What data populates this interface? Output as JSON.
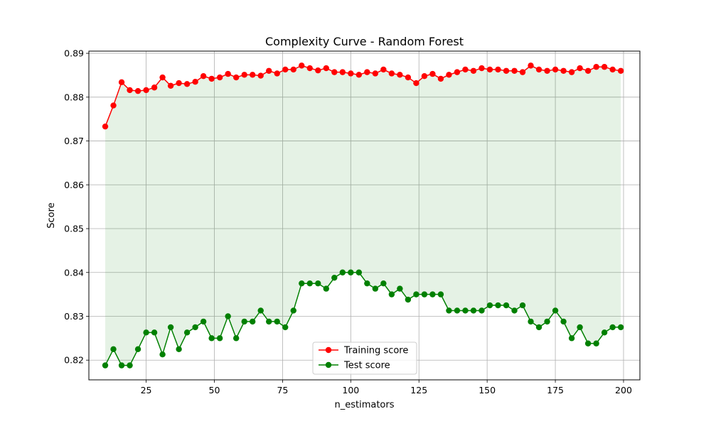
{
  "chart_data": {
    "type": "line",
    "title": "Complexity Curve - Random Forest",
    "xlabel": "n_estimators",
    "ylabel": "Score",
    "xlim": [
      4,
      206
    ],
    "ylim": [
      0.8155,
      0.8905
    ],
    "xticks": [
      25,
      50,
      75,
      100,
      125,
      150,
      175,
      200
    ],
    "yticks": [
      0.82,
      0.83,
      0.84,
      0.85,
      0.86,
      0.87,
      0.88,
      0.89
    ],
    "ytick_labels": [
      "0.82",
      "0.83",
      "0.84",
      "0.85",
      "0.86",
      "0.87",
      "0.88",
      "0.89"
    ],
    "grid": true,
    "legend": "lower-center",
    "fill_between": {
      "series": [
        "Training score",
        "Test score"
      ],
      "color": "#008000",
      "opacity": 0.1
    },
    "x": [
      10,
      13,
      16,
      19,
      22,
      25,
      28,
      31,
      34,
      37,
      40,
      43,
      46,
      49,
      52,
      55,
      58,
      61,
      64,
      67,
      70,
      73,
      76,
      79,
      82,
      85,
      88,
      91,
      94,
      97,
      100,
      103,
      106,
      109,
      112,
      115,
      118,
      121,
      124,
      127,
      130,
      133,
      136,
      139,
      142,
      145,
      148,
      151,
      154,
      157,
      160,
      163,
      166,
      169,
      172,
      175,
      178,
      181,
      184,
      187,
      190,
      193,
      196,
      199
    ],
    "series": [
      {
        "name": "Training score",
        "color": "#ff0000",
        "values": [
          0.8733,
          0.8781,
          0.8834,
          0.8816,
          0.8814,
          0.8816,
          0.8822,
          0.8845,
          0.8826,
          0.8832,
          0.883,
          0.8835,
          0.8848,
          0.8842,
          0.8845,
          0.8853,
          0.8845,
          0.8851,
          0.8851,
          0.8849,
          0.886,
          0.8854,
          0.8863,
          0.8863,
          0.8872,
          0.8866,
          0.8861,
          0.8866,
          0.8857,
          0.8857,
          0.8854,
          0.8851,
          0.8857,
          0.8854,
          0.8863,
          0.8854,
          0.8851,
          0.8845,
          0.8832,
          0.8848,
          0.8853,
          0.8842,
          0.8851,
          0.8857,
          0.8863,
          0.886,
          0.8866,
          0.8863,
          0.8863,
          0.886,
          0.886,
          0.8857,
          0.8872,
          0.8863,
          0.886,
          0.8863,
          0.886,
          0.8857,
          0.8866,
          0.886,
          0.8869,
          0.8869,
          0.8863,
          0.886
        ]
      },
      {
        "name": "Test score",
        "color": "#008000",
        "values": [
          0.8188,
          0.8225,
          0.8188,
          0.8188,
          0.8225,
          0.8263,
          0.8263,
          0.8213,
          0.8275,
          0.8225,
          0.8263,
          0.8275,
          0.8288,
          0.825,
          0.825,
          0.83,
          0.825,
          0.8288,
          0.8288,
          0.8313,
          0.8288,
          0.8288,
          0.8275,
          0.8313,
          0.8375,
          0.8375,
          0.8375,
          0.8363,
          0.8388,
          0.84,
          0.84,
          0.84,
          0.8375,
          0.8363,
          0.8375,
          0.835,
          0.8363,
          0.8338,
          0.835,
          0.835,
          0.835,
          0.835,
          0.8313,
          0.8313,
          0.8313,
          0.8313,
          0.8313,
          0.8325,
          0.8325,
          0.8325,
          0.8313,
          0.8325,
          0.8288,
          0.8275,
          0.8288,
          0.8313,
          0.8288,
          0.825,
          0.8275,
          0.8238,
          0.8238,
          0.8263,
          0.8275,
          0.8275
        ]
      }
    ]
  }
}
